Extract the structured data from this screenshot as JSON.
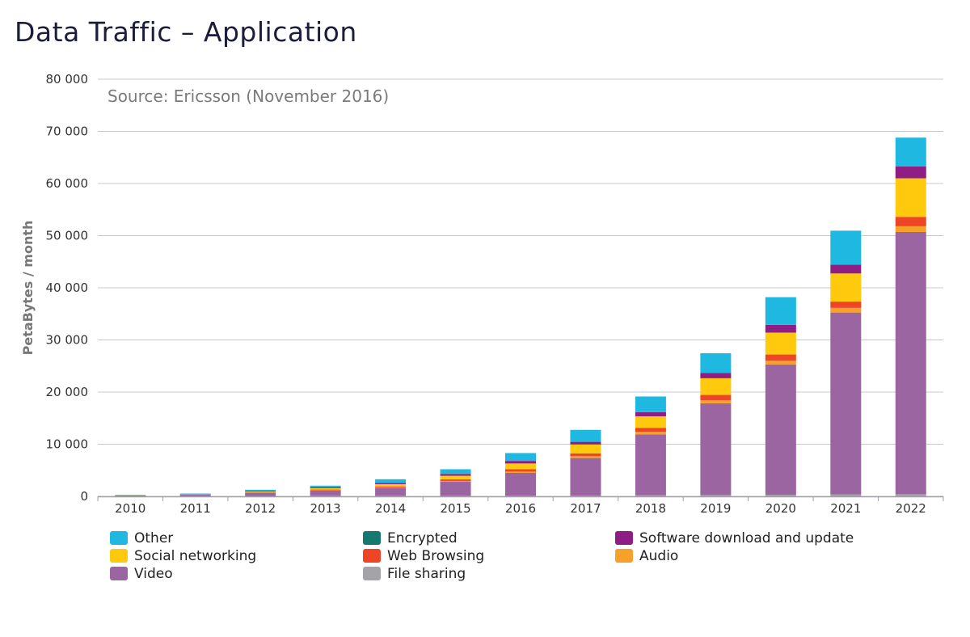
{
  "chart_data": {
    "type": "bar",
    "stacked": true,
    "title": "Data Traffic – Application",
    "source_note": "Source: Ericsson (November 2016)",
    "xlabel": "",
    "ylabel": "PetaBytes / month",
    "ylim": [
      0,
      80000
    ],
    "yticks": [
      0,
      10000,
      20000,
      30000,
      40000,
      50000,
      60000,
      70000,
      80000
    ],
    "ytick_labels": [
      "0",
      "10 000",
      "20 000",
      "30 000",
      "40 000",
      "50 000",
      "60 000",
      "70 000",
      "80 000"
    ],
    "grid": true,
    "legend_position": "bottom",
    "categories": [
      "2010",
      "2011",
      "2012",
      "2013",
      "2014",
      "2015",
      "2016",
      "2017",
      "2018",
      "2019",
      "2020",
      "2021",
      "2022"
    ],
    "series": [
      {
        "name": "File sharing",
        "color": "#a3a3a8",
        "values": [
          60,
          60,
          80,
          100,
          100,
          100,
          100,
          150,
          200,
          250,
          300,
          350,
          400
        ]
      },
      {
        "name": "Video",
        "color": "#9b65a1",
        "values": [
          100,
          250,
          550,
          1000,
          1500,
          2700,
          4400,
          7200,
          11700,
          17600,
          25000,
          34900,
          50300
        ]
      },
      {
        "name": "Audio",
        "color": "#f8a12a",
        "values": [
          10,
          20,
          30,
          50,
          80,
          150,
          250,
          350,
          450,
          600,
          700,
          900,
          1100
        ]
      },
      {
        "name": "Web Browsing",
        "color": "#ee4526",
        "values": [
          30,
          60,
          100,
          150,
          200,
          300,
          450,
          550,
          800,
          1000,
          1200,
          1200,
          1800
        ]
      },
      {
        "name": "Encrypted",
        "color": "#16796f",
        "values": [
          0,
          0,
          0,
          0,
          0,
          0,
          0,
          0,
          0,
          0,
          0,
          0,
          0
        ]
      },
      {
        "name": "Social networking",
        "color": "#ffc90e",
        "values": [
          30,
          60,
          150,
          250,
          450,
          700,
          1100,
          1700,
          2200,
          3200,
          4200,
          5400,
          7400
        ]
      },
      {
        "name": "Software download and update",
        "color": "#8e1e83",
        "values": [
          20,
          40,
          100,
          150,
          250,
          350,
          500,
          500,
          800,
          1000,
          1500,
          1700,
          2300
        ]
      },
      {
        "name": "Other",
        "color": "#1fb8e0",
        "values": [
          50,
          60,
          250,
          350,
          700,
          900,
          1500,
          2300,
          3000,
          3800,
          5300,
          6500,
          5500
        ]
      }
    ],
    "legend_order": [
      "Other",
      "Encrypted",
      "Software download and update",
      "Social networking",
      "Web Browsing",
      "Audio",
      "Video",
      "File sharing"
    ]
  }
}
